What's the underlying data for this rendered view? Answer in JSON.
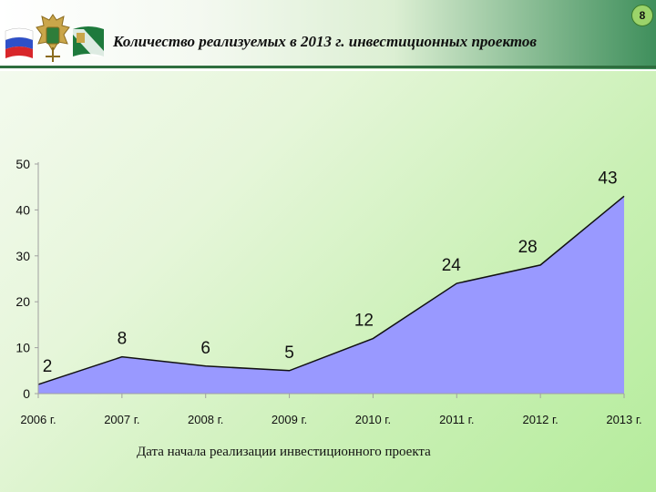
{
  "header": {
    "title": "Количество реализуемых в 2013 г. инвестиционных проектов",
    "page_number": "8"
  },
  "colors": {
    "area_fill": "#9999ff",
    "area_stroke": "#111111",
    "axis": "#a0a0a0",
    "header_green": "#2e6e3e"
  },
  "icons": [
    "russian-flag-icon",
    "customs-emblem-icon",
    "customs-flag-icon"
  ],
  "chart_data": {
    "type": "area",
    "title": "",
    "xlabel": "Дата начала реализации инвестиционного проекта",
    "ylabel": "",
    "categories": [
      "2006 г.",
      "2007 г.",
      "2008 г.",
      "2009 г.",
      "2010 г.",
      "2011 г.",
      "2012 г.",
      "2013 г."
    ],
    "values": [
      2,
      8,
      6,
      5,
      12,
      24,
      28,
      43
    ],
    "ylim": [
      0,
      50
    ],
    "yticks": [
      0,
      10,
      20,
      30,
      40,
      50
    ],
    "grid": false,
    "legend": "none"
  }
}
